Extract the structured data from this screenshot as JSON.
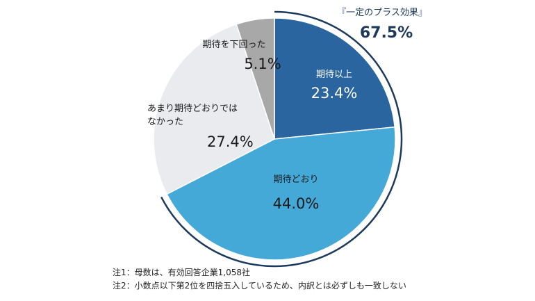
{
  "chart_data": {
    "type": "pie",
    "title": "",
    "slices": [
      {
        "label": "期待以上",
        "value": 23.4,
        "display": "23.4%",
        "color": "#2a65a0",
        "text_color": "#ffffff"
      },
      {
        "label": "期待どおり",
        "value": 44.0,
        "display": "44.0%",
        "color": "#45a9d8",
        "text_color": "#1a1a1a"
      },
      {
        "label": "あまり期待どおりではなかった",
        "label_lines": [
          "あまり期待どおりでは",
          "なかった"
        ],
        "value": 27.4,
        "display": "27.4%",
        "color": "#e9ebef",
        "text_color": "#1a1a1a"
      },
      {
        "label": "期待を下回った",
        "value": 5.1,
        "display": "5.1%",
        "color": "#a8a8a8",
        "text_color": "#1a1a1a"
      }
    ],
    "highlight": {
      "label": "『一定のプラス効果』",
      "value": 67.5,
      "display": "67.5%",
      "color": "#1d3a5c",
      "covers": [
        "期待以上",
        "期待どおり"
      ]
    }
  },
  "notes": {
    "note1": "注1：母数は、有効回答企業1,058社",
    "note2": "注2：小数点以下第2位を四捨五入しているため、内訳とは必ずしも一致しない"
  }
}
